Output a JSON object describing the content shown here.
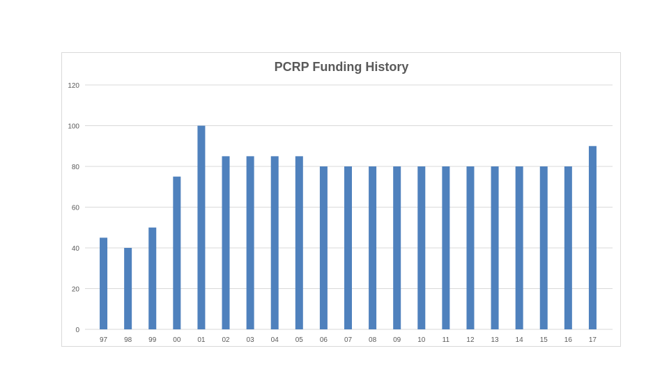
{
  "chart_data": {
    "type": "bar",
    "title": "PCRP Funding History",
    "xlabel": "",
    "ylabel": "",
    "categories": [
      "97",
      "98",
      "99",
      "00",
      "01",
      "02",
      "03",
      "04",
      "05",
      "06",
      "07",
      "08",
      "09",
      "10",
      "11",
      "12",
      "13",
      "14",
      "15",
      "16",
      "17"
    ],
    "values": [
      45,
      40,
      50,
      75,
      100,
      85,
      85,
      85,
      85,
      80,
      80,
      80,
      80,
      80,
      80,
      80,
      80,
      80,
      80,
      80,
      90
    ],
    "ylim": [
      0,
      120
    ],
    "yticks": [
      0,
      20,
      40,
      60,
      80,
      100,
      120
    ],
    "grid": true,
    "legend": "none",
    "bar_color": "#4f81bd",
    "grid_color": "#d9d9d9"
  }
}
